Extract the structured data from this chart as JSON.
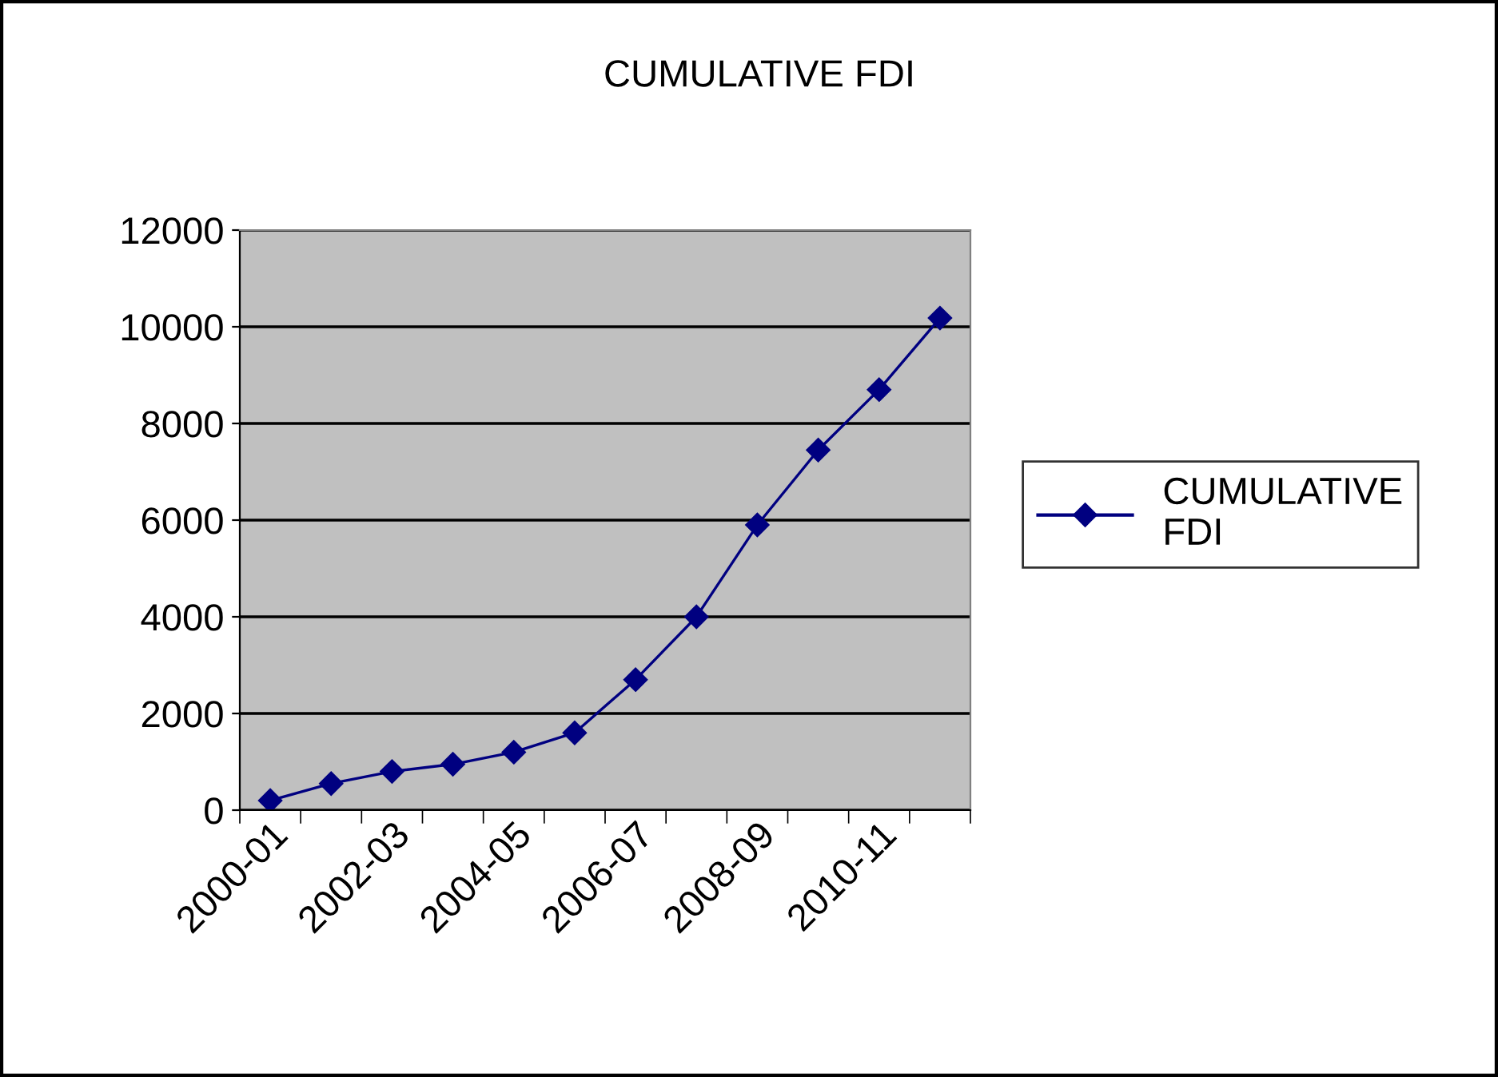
{
  "chart_data": {
    "type": "line",
    "title": "CUMULATIVE FDI",
    "categories": [
      "2000-01",
      null,
      "2002-03",
      null,
      "2004-05",
      null,
      "2006-07",
      null,
      "2008-09",
      null,
      "2010-11",
      null
    ],
    "series": [
      {
        "name": "CUMULATIVE FDI",
        "color": "#000080",
        "values": [
          200,
          550,
          800,
          950,
          1200,
          1600,
          2700,
          4000,
          5900,
          7450,
          8700,
          10180
        ]
      }
    ],
    "ylim": [
      0,
      12000
    ],
    "yticks": [
      0,
      2000,
      4000,
      6000,
      8000,
      10000,
      12000
    ],
    "grid": "y",
    "legend": "right",
    "marker": "diamond",
    "line_style": "solid"
  }
}
